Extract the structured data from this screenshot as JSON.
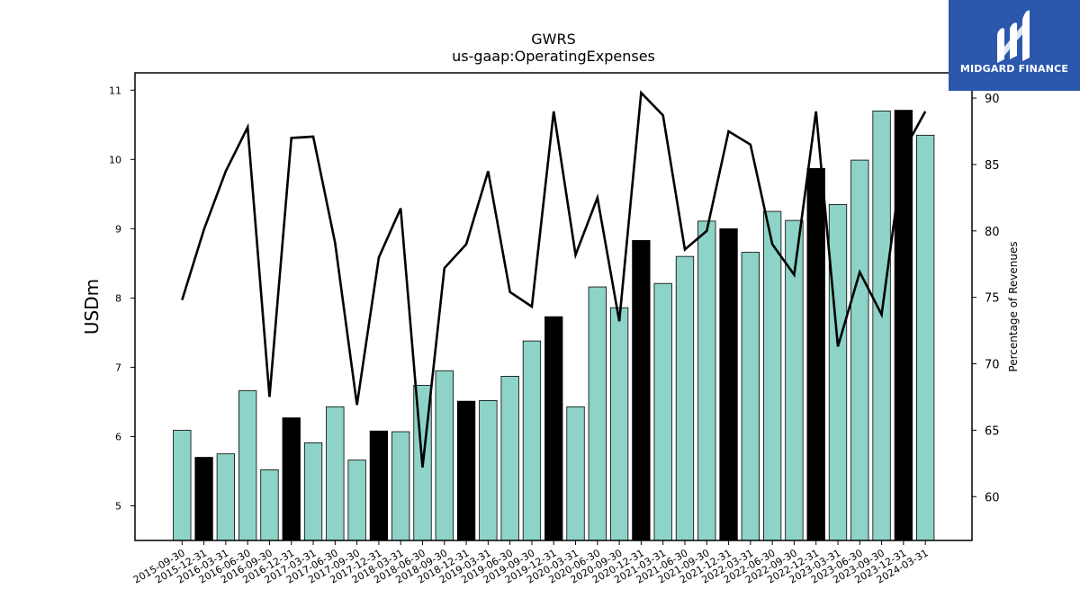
{
  "colors": {
    "bar_default": "#8dd3c7",
    "bar_highlight": "#000000",
    "line": "#000000",
    "logo_bg": "#2b58ad",
    "logo_fg": "#ffffff"
  },
  "logo": {
    "text": "MIDGARD FINANCE",
    "icon": "midgard-logo-icon"
  },
  "chart_data": {
    "type": "bar",
    "title": [
      "GWRS",
      "us-gaap:OperatingExpenses"
    ],
    "ylabel": "USDm",
    "y2label": "Percentage of Revenues",
    "ylim": [
      4.5,
      11.25
    ],
    "y2lim": [
      56.7,
      91.9
    ],
    "yticks": [
      5,
      6,
      7,
      8,
      9,
      10,
      11
    ],
    "y2ticks": [
      60,
      65,
      70,
      75,
      80,
      85,
      90
    ],
    "categories": [
      "2015-09-30",
      "2015-12-31",
      "2016-03-31",
      "2016-06-30",
      "2016-09-30",
      "2016-12-31",
      "2017-03-31",
      "2017-06-30",
      "2017-09-30",
      "2017-12-31",
      "2018-03-31",
      "2018-06-30",
      "2018-09-30",
      "2018-12-31",
      "2019-03-31",
      "2019-06-30",
      "2019-09-30",
      "2019-12-31",
      "2020-03-31",
      "2020-06-30",
      "2020-09-30",
      "2020-12-31",
      "2021-03-31",
      "2021-06-30",
      "2021-09-30",
      "2021-12-31",
      "2022-03-31",
      "2022-06-30",
      "2022-09-30",
      "2022-12-31",
      "2023-03-31",
      "2023-06-30",
      "2023-09-30",
      "2023-12-31",
      "2024-03-31"
    ],
    "series": [
      {
        "type": "bar",
        "values": [
          6.09,
          5.7,
          5.75,
          6.66,
          5.52,
          6.27,
          5.91,
          6.43,
          5.66,
          6.08,
          6.07,
          6.74,
          6.95,
          6.51,
          6.52,
          6.87,
          7.38,
          7.73,
          6.43,
          8.16,
          7.86,
          8.83,
          8.21,
          8.6,
          9.11,
          9.0,
          8.66,
          9.25,
          9.12,
          9.87,
          9.35,
          9.99,
          10.7,
          10.71,
          10.35
        ],
        "highlight": [
          false,
          true,
          false,
          false,
          false,
          true,
          false,
          false,
          false,
          true,
          false,
          false,
          false,
          true,
          false,
          false,
          false,
          true,
          false,
          false,
          false,
          true,
          false,
          false,
          false,
          true,
          false,
          false,
          false,
          true,
          false,
          false,
          false,
          true,
          false
        ]
      },
      {
        "type": "line",
        "axis": "right",
        "values": [
          74.8,
          80.1,
          84.5,
          87.8,
          67.5,
          87.0,
          87.1,
          79.1,
          66.9,
          78.0,
          81.7,
          62.2,
          77.2,
          79.0,
          84.5,
          75.4,
          74.3,
          89.0,
          78.2,
          82.5,
          73.2,
          90.4,
          88.7,
          78.6,
          80.0,
          87.5,
          86.5,
          79.0,
          76.7,
          89.0,
          71.3,
          76.9,
          73.7,
          86.0,
          89.0
        ]
      }
    ]
  }
}
